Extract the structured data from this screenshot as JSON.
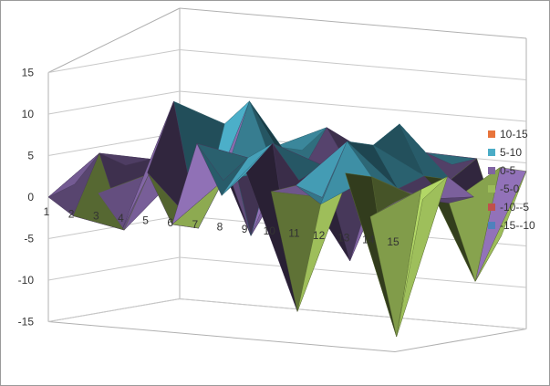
{
  "chart_data": {
    "type": "surface",
    "title": "",
    "xlabel": "",
    "ylabel": "",
    "zlim": [
      -15,
      15
    ],
    "z_ticks": [
      15,
      10,
      5,
      0,
      -5,
      -10,
      -15
    ],
    "categories": [
      "1",
      "2",
      "3",
      "4",
      "5",
      "6",
      "7",
      "8",
      "9",
      "10",
      "11",
      "12",
      "13",
      "14",
      "15"
    ],
    "series_count": 6,
    "series": [
      {
        "values": [
          0,
          -2,
          1,
          -3,
          4,
          -2,
          8,
          2,
          5,
          3,
          4,
          2,
          6,
          1,
          3
        ]
      },
      {
        "values": [
          1,
          5,
          -4,
          3,
          12,
          -3,
          3,
          6,
          8,
          -12,
          2,
          9,
          5,
          -14,
          4
        ]
      },
      {
        "values": [
          0,
          3,
          4,
          2,
          10,
          9,
          12,
          4,
          3,
          5,
          4,
          8,
          3,
          2,
          5
        ]
      },
      {
        "values": [
          -1,
          2,
          1,
          4,
          3,
          -5,
          6,
          3,
          4,
          -7,
          3,
          10,
          4,
          1,
          2
        ]
      },
      {
        "values": [
          1,
          3,
          2,
          5,
          4,
          2,
          5,
          8,
          3,
          4,
          7,
          6,
          3,
          -9,
          5
        ]
      },
      {
        "values": [
          0,
          2,
          3,
          1,
          2,
          3,
          4,
          2,
          4,
          2,
          3,
          4,
          5,
          -4,
          4
        ]
      }
    ],
    "legend": {
      "position": "right",
      "entries": [
        {
          "label": "10-15",
          "color": "#e8743b"
        },
        {
          "label": "5-10",
          "color": "#4bacc6"
        },
        {
          "label": "0-5",
          "color": "#8064a2"
        },
        {
          "label": "-5-0",
          "color": "#9bbb59"
        },
        {
          "label": "-10--5",
          "color": "#c0504d"
        },
        {
          "label": "-15--10",
          "color": "#4f81bd"
        }
      ]
    }
  }
}
